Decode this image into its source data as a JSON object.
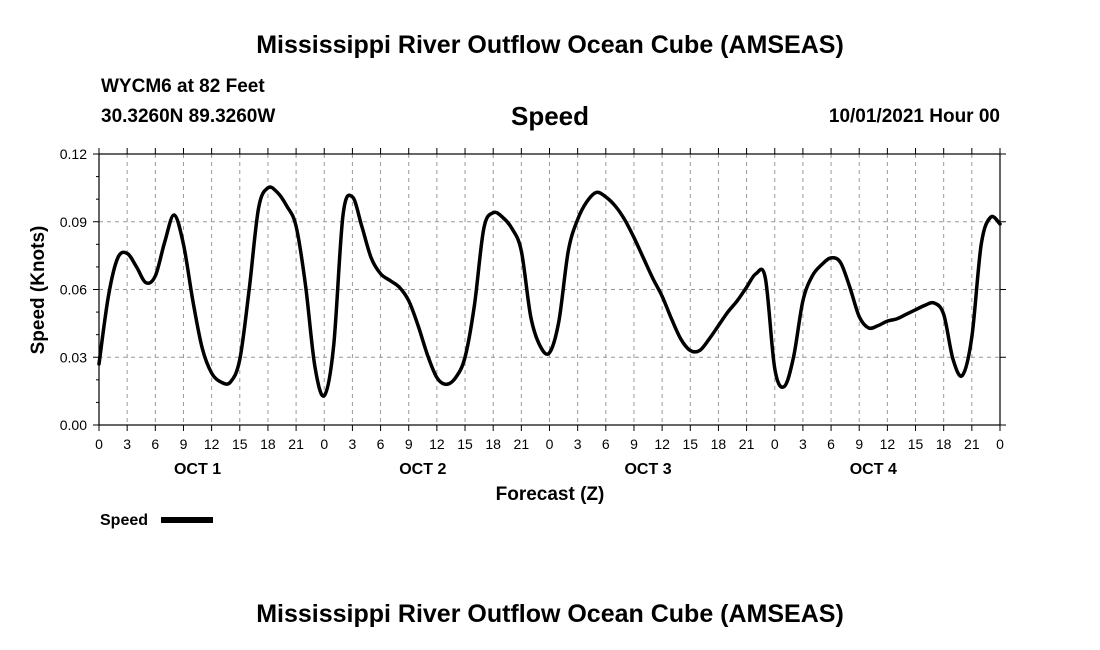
{
  "header": {
    "title": "Mississippi River Outflow Ocean Cube (AMSEAS)",
    "station": "WYCM6 at 82 Feet",
    "coords": "30.3260N  89.3260W",
    "subtitle": "Speed",
    "datetime": "10/01/2021 Hour 00",
    "footer_title": "Mississippi River Outflow Ocean Cube (AMSEAS)"
  },
  "chart_data": {
    "type": "line",
    "title": "Speed",
    "xlabel": "Forecast (Z)",
    "ylabel": "Speed (Knots)",
    "ylim": [
      0,
      0.12
    ],
    "xlim": [
      0,
      96
    ],
    "y_ticks": [
      "0.00",
      "0.03",
      "0.06",
      "0.09",
      "0.12"
    ],
    "x_tick_labels": [
      "0",
      "3",
      "6",
      "9",
      "12",
      "15",
      "18",
      "21",
      "0",
      "3",
      "6",
      "9",
      "12",
      "15",
      "18",
      "21",
      "0",
      "3",
      "6",
      "9",
      "12",
      "15",
      "18",
      "21",
      "0",
      "3",
      "6",
      "9",
      "12",
      "15",
      "18",
      "21",
      "0"
    ],
    "day_labels": [
      "OCT 1",
      "OCT 2",
      "OCT 3",
      "OCT 4"
    ],
    "grid": true,
    "legend": {
      "label": "Speed",
      "placement": "bottom-left"
    },
    "series": [
      {
        "name": "Speed",
        "color": "#000000",
        "x": [
          0,
          1,
          2,
          3,
          4,
          5,
          6,
          7,
          8,
          9,
          10,
          11,
          12,
          13,
          14,
          15,
          16,
          17,
          18,
          19,
          20,
          21,
          22,
          23,
          24,
          25,
          26,
          27,
          28,
          29,
          30,
          31,
          32,
          33,
          34,
          35,
          36,
          37,
          38,
          39,
          40,
          41,
          42,
          43,
          44,
          45,
          46,
          47,
          48,
          49,
          50,
          51,
          52,
          53,
          54,
          55,
          56,
          57,
          58,
          59,
          60,
          61,
          62,
          63,
          64,
          65,
          66,
          67,
          68,
          69,
          70,
          71,
          72,
          73,
          74,
          75,
          76,
          77,
          78,
          79,
          80,
          81,
          82,
          83,
          84,
          85,
          86,
          87,
          88,
          89,
          90,
          91,
          92,
          93,
          94,
          95,
          96
        ],
        "values": [
          0.027,
          0.057,
          0.074,
          0.076,
          0.07,
          0.063,
          0.066,
          0.081,
          0.093,
          0.08,
          0.055,
          0.034,
          0.023,
          0.019,
          0.019,
          0.029,
          0.06,
          0.096,
          0.105,
          0.103,
          0.097,
          0.088,
          0.062,
          0.026,
          0.013,
          0.035,
          0.093,
          0.101,
          0.088,
          0.074,
          0.067,
          0.064,
          0.061,
          0.055,
          0.044,
          0.031,
          0.021,
          0.018,
          0.021,
          0.03,
          0.053,
          0.087,
          0.094,
          0.092,
          0.087,
          0.077,
          0.048,
          0.035,
          0.032,
          0.046,
          0.077,
          0.091,
          0.099,
          0.103,
          0.101,
          0.097,
          0.091,
          0.083,
          0.074,
          0.065,
          0.057,
          0.047,
          0.038,
          0.033,
          0.033,
          0.038,
          0.044,
          0.05,
          0.055,
          0.061,
          0.067,
          0.065,
          0.025,
          0.017,
          0.03,
          0.055,
          0.066,
          0.071,
          0.074,
          0.072,
          0.061,
          0.048,
          0.043,
          0.044,
          0.046,
          0.047,
          0.049,
          0.051,
          0.053,
          0.054,
          0.049,
          0.029,
          0.022,
          0.039,
          0.08,
          0.092,
          0.089
        ]
      }
    ]
  }
}
